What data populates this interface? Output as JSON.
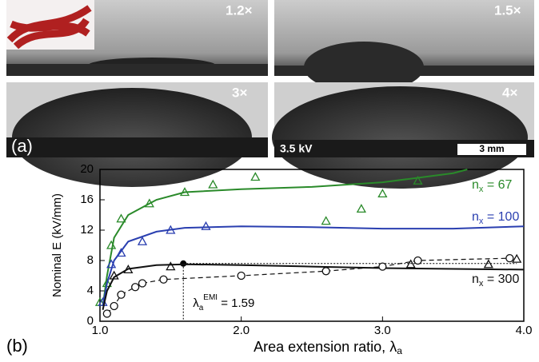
{
  "panels": {
    "photo_labels": [
      "1.2×",
      "1.5×",
      "3×",
      "4×"
    ],
    "panel_a": "(a)",
    "voltage": "3.5 kV",
    "scale_bar": "3 mm"
  },
  "chart_data": {
    "type": "line",
    "panel_label": "(b)",
    "y_label": "Nominal E (kV/mm)",
    "x_label": {
      "main": "Area extension ratio, λ",
      "sub": "a"
    },
    "annotation": {
      "main": "λ",
      "sub": "a",
      "sup": "EMI",
      "rest": " = 1.59"
    },
    "xlim": [
      1,
      4
    ],
    "ylim": [
      0,
      20
    ],
    "xticks": [
      {
        "value": 1,
        "label": "1.0"
      },
      {
        "value": 2,
        "label": "2.0"
      },
      {
        "value": 3,
        "label": "3.0"
      },
      {
        "value": 4,
        "label": "4.0"
      }
    ],
    "yticks": [
      0,
      4,
      8,
      12,
      16,
      20
    ],
    "emi_point": {
      "x": 1.59,
      "y": 7.6
    },
    "series": [
      {
        "style": "line",
        "color": "#2a8a2a",
        "label": {
          "main": "n",
          "sub": "x",
          "rest": " = 67"
        },
        "x": [
          1.02,
          1.05,
          1.1,
          1.2,
          1.4,
          1.6,
          2.0,
          2.5,
          3.0,
          3.5,
          3.6
        ],
        "values": [
          2,
          6,
          11,
          14,
          16,
          17,
          17.4,
          17.7,
          18.3,
          19.5,
          20
        ]
      },
      {
        "style": "triangle",
        "color": "#2a8a2a",
        "x": [
          1.0,
          1.05,
          1.08,
          1.15,
          1.35,
          1.6,
          1.8,
          2.1,
          2.6,
          2.85,
          3.0,
          3.25
        ],
        "values": [
          2.5,
          5,
          10,
          13.5,
          15.5,
          17,
          18,
          19,
          13.2,
          14.8,
          16.8,
          18.5
        ]
      },
      {
        "style": "line",
        "color": "#2a3fb0",
        "label": {
          "main": "n",
          "sub": "x",
          "rest": " = 100"
        },
        "x": [
          1.02,
          1.05,
          1.1,
          1.2,
          1.4,
          1.6,
          2.0,
          2.5,
          3.0,
          3.5,
          4.0
        ],
        "values": [
          2,
          5,
          8,
          10.5,
          11.8,
          12.3,
          12.5,
          12.4,
          12.2,
          12.2,
          12.5
        ]
      },
      {
        "style": "triangle",
        "color": "#2a3fb0",
        "x": [
          1.02,
          1.08,
          1.15,
          1.3,
          1.5,
          1.75
        ],
        "values": [
          2.5,
          7.5,
          9,
          10.5,
          12,
          12.5
        ]
      },
      {
        "style": "line",
        "color": "#111111",
        "label": {
          "main": "n",
          "sub": "x",
          "rest": " = 300"
        },
        "x": [
          1.02,
          1.05,
          1.1,
          1.2,
          1.4,
          1.6,
          2.0,
          2.5,
          3.0,
          3.5,
          4.0
        ],
        "values": [
          1.5,
          4,
          5.8,
          6.9,
          7.4,
          7.5,
          7.4,
          7.2,
          7,
          6.9,
          6.8
        ]
      },
      {
        "style": "dashed-circle",
        "color": "#111111",
        "x": [
          1.05,
          1.1,
          1.15,
          1.25,
          1.3,
          1.45,
          2.0,
          2.6,
          3.0,
          3.25,
          3.9
        ],
        "values": [
          1,
          2,
          3.5,
          4.5,
          5,
          5.5,
          6,
          6.6,
          7.2,
          8,
          8.3
        ]
      },
      {
        "style": "triangle",
        "color": "#111111",
        "x": [
          1.1,
          1.2,
          1.5,
          3.2,
          3.75,
          3.95
        ],
        "values": [
          6,
          6.8,
          7.2,
          7.5,
          7.5,
          8.2
        ]
      }
    ]
  }
}
